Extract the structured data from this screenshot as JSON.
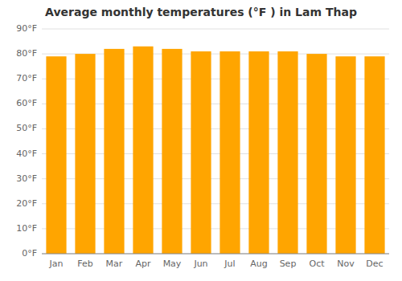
{
  "chart_data": {
    "type": "bar",
    "title": "Average monthly temperatures (°F ) in Lam Thap",
    "categories": [
      "Jan",
      "Feb",
      "Mar",
      "Apr",
      "May",
      "Jun",
      "Jul",
      "Aug",
      "Sep",
      "Oct",
      "Nov",
      "Dec"
    ],
    "values": [
      79,
      80,
      82,
      83,
      82,
      81,
      81,
      81,
      81,
      80,
      79,
      79
    ],
    "color": "#ffa500",
    "ylim": [
      0,
      90
    ],
    "yticks": [
      {
        "value": 0,
        "label": "0°F"
      },
      {
        "value": 10,
        "label": "10°F"
      },
      {
        "value": 20,
        "label": "20°F"
      },
      {
        "value": 30,
        "label": "30°F"
      },
      {
        "value": 40,
        "label": "40°F"
      },
      {
        "value": 50,
        "label": "50°F"
      },
      {
        "value": 60,
        "label": "60°F"
      },
      {
        "value": 70,
        "label": "70°F"
      },
      {
        "value": 80,
        "label": "80°F"
      },
      {
        "value": 90,
        "label": "90°F"
      }
    ],
    "grid": true
  }
}
